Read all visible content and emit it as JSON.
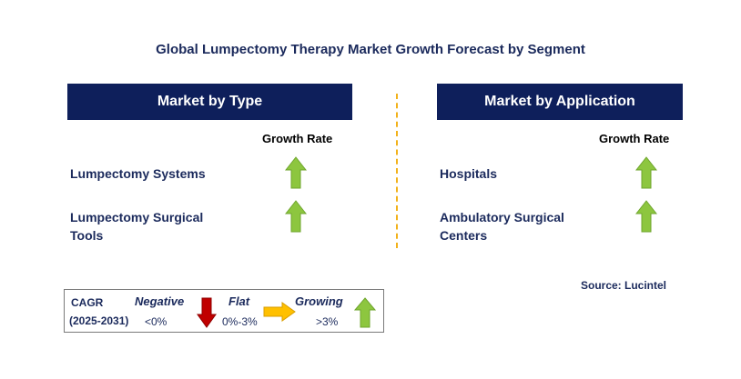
{
  "title": "Global Lumpectomy Therapy Market Growth Forecast by Segment",
  "left_panel": {
    "header": "Market by Type",
    "growth_label": "Growth Rate",
    "segments": [
      {
        "label_line1": "Lumpectomy Systems",
        "label_line2": "",
        "trend": "growing"
      },
      {
        "label_line1": "Lumpectomy Surgical",
        "label_line2": "Tools",
        "trend": "growing"
      }
    ]
  },
  "right_panel": {
    "header": "Market by Application",
    "growth_label": "Growth Rate",
    "segments": [
      {
        "label_line1": "Hospitals",
        "label_line2": "",
        "trend": "growing"
      },
      {
        "label_line1": "Ambulatory Surgical",
        "label_line2": "Centers",
        "trend": "growing"
      }
    ]
  },
  "source": "Source: Lucintel",
  "legend": {
    "cagr_label": "CAGR",
    "period": "(2025-2031)",
    "negative": {
      "label": "Negative",
      "range": "<0%",
      "color": "#c00000"
    },
    "flat": {
      "label": "Flat",
      "range": "0%-3%",
      "color": "#ffc000"
    },
    "growing": {
      "label": "Growing",
      "range": ">3%",
      "color": "#8dc63f"
    }
  },
  "colors": {
    "header_bg": "#0e1f5b",
    "text_navy": "#1b2a5c",
    "divider": "#f2b21b",
    "growing_arrow": "#8dc63f"
  }
}
